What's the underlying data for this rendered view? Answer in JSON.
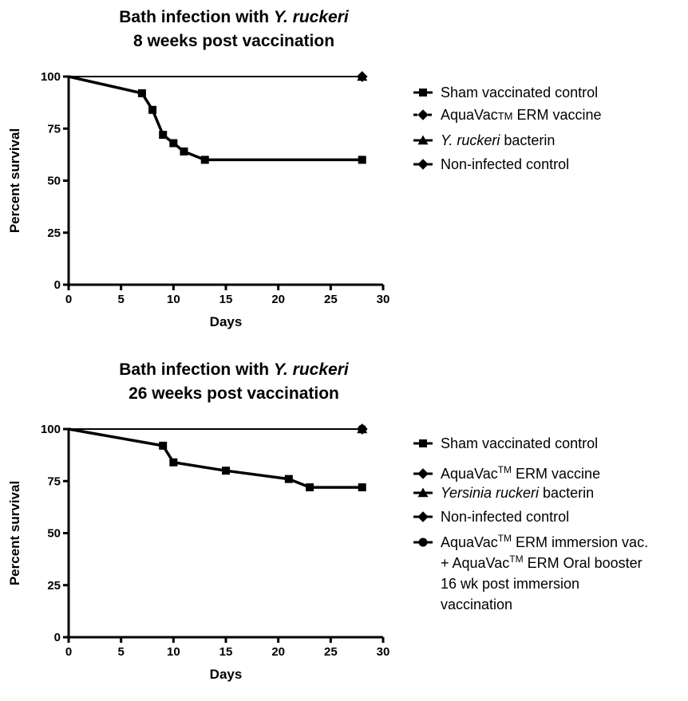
{
  "chart_data": [
    {
      "type": "line",
      "title": "Bath infection with Y. ruckeri",
      "title_parts": [
        "Bath infection with ",
        "Y. ruckeri"
      ],
      "subtitle": "8 weeks post vaccination",
      "xlabel": "Days",
      "ylabel": "Percent survival",
      "xlim": [
        0,
        30
      ],
      "ylim": [
        0,
        100
      ],
      "x_ticks": [
        "0",
        "5",
        "10",
        "15",
        "20",
        "25",
        "30"
      ],
      "y_ticks": [
        "0",
        "25",
        "50",
        "75",
        "100"
      ],
      "grid": false,
      "legend_position": "right",
      "series": [
        {
          "name": "Sham vaccinated control",
          "name_parts": [
            {
              "t": "Sham vaccinated control"
            }
          ],
          "marker": "square",
          "x": [
            0,
            7,
            8,
            9,
            10,
            11,
            13,
            28
          ],
          "y": [
            100,
            92,
            84,
            72,
            68,
            64,
            60,
            60
          ]
        },
        {
          "name": "AquaVacTM ERM vaccine",
          "name_parts": [
            {
              "t": "AquaVac"
            },
            {
              "t": "TM",
              "small": true
            },
            {
              "t": " ERM vaccine"
            }
          ],
          "marker": "diamond",
          "dashed": true,
          "x": [
            0,
            28
          ],
          "y": [
            100,
            100
          ]
        },
        {
          "name": "Y. ruckeri bacterin",
          "name_parts": [
            {
              "t": "Y. ruckeri",
              "italic": true
            },
            {
              "t": " bacterin"
            }
          ],
          "marker": "triangle",
          "x": [
            0,
            28
          ],
          "y": [
            100,
            100
          ]
        },
        {
          "name": "Non-infected control",
          "name_parts": [
            {
              "t": "Non-infected control"
            }
          ],
          "marker": "diamond",
          "x": [
            0,
            28
          ],
          "y": [
            100,
            100
          ]
        }
      ]
    },
    {
      "type": "line",
      "title": "Bath infection with Y. ruckeri",
      "title_parts": [
        "Bath infection with ",
        "Y. ruckeri"
      ],
      "subtitle": "26 weeks post vaccination",
      "xlabel": "Days",
      "ylabel": "Percent survival",
      "xlim": [
        0,
        30
      ],
      "ylim": [
        0,
        100
      ],
      "x_ticks": [
        "0",
        "5",
        "10",
        "15",
        "20",
        "25",
        "30"
      ],
      "y_ticks": [
        "0",
        "25",
        "50",
        "75",
        "100"
      ],
      "grid": false,
      "legend_position": "right",
      "series": [
        {
          "name": "Sham vaccinated control",
          "name_parts": [
            {
              "t": "Sham vaccinated control"
            }
          ],
          "marker": "square",
          "x": [
            0,
            9,
            10,
            15,
            21,
            23,
            28
          ],
          "y": [
            100,
            92,
            84,
            80,
            76,
            72,
            72
          ]
        },
        {
          "name": "AquaVacTM ERM vaccine",
          "name_parts": [
            {
              "t": "AquaVac"
            },
            {
              "t": "TM",
              "sup": true
            },
            {
              "t": " ERM vaccine"
            }
          ],
          "marker": "diamond",
          "x": [
            0,
            28
          ],
          "y": [
            100,
            100
          ]
        },
        {
          "name": "Yersinia ruckeri bacterin",
          "name_parts": [
            {
              "t": "Yersinia ruckeri",
              "italic": true
            },
            {
              "t": " bacterin"
            }
          ],
          "marker": "triangle",
          "x": [
            0,
            28
          ],
          "y": [
            100,
            100
          ]
        },
        {
          "name": "Non-infected control",
          "name_parts": [
            {
              "t": "Non-infected control"
            }
          ],
          "marker": "diamond",
          "x": [
            0,
            28
          ],
          "y": [
            100,
            100
          ]
        },
        {
          "name": "AquaVacTM ERM immersion vac. + AquaVacTM ERM Oral booster 16 wk post immersion vaccination",
          "name_lines": [
            [
              {
                "t": "AquaVac"
              },
              {
                "t": "TM",
                "sup": true
              },
              {
                "t": " ERM immersion vac."
              }
            ],
            [
              {
                "t": "+ AquaVac"
              },
              {
                "t": "TM",
                "sup": true
              },
              {
                "t": " ERM Oral booster"
              }
            ],
            [
              {
                "t": "16 wk post immersion"
              }
            ],
            [
              {
                "t": "vaccination"
              }
            ]
          ],
          "marker": "circle",
          "x": [
            0,
            28
          ],
          "y": [
            100,
            100
          ]
        }
      ]
    }
  ]
}
